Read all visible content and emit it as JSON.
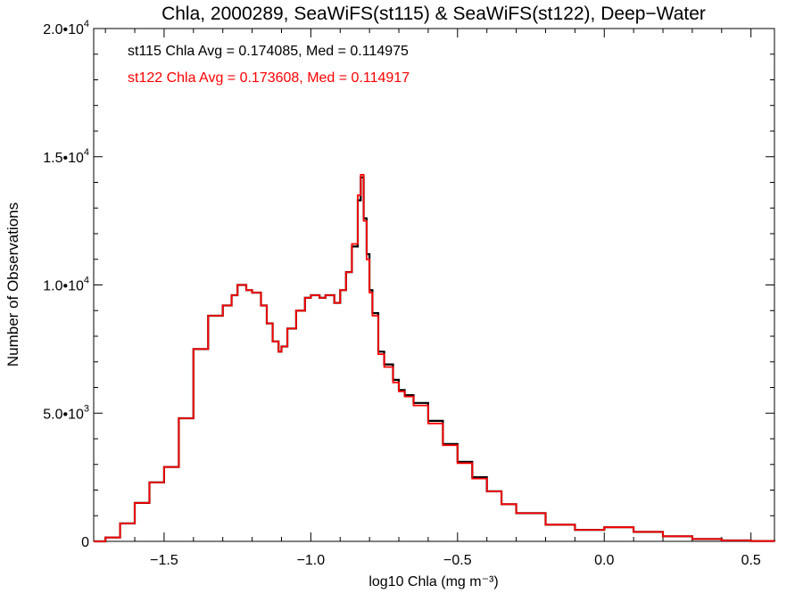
{
  "chart_data": {
    "type": "line",
    "title": "Chla, 2000289, SeaWiFS(st115) & SeaWiFS(st122), Deep−Water",
    "xlabel": "log10 Chla (mg m⁻³)",
    "ylabel": "Number of Observations",
    "xlim": [
      -1.74,
      0.58
    ],
    "ylim": [
      0,
      20000
    ],
    "step": true,
    "grid": false,
    "x_ticks": [
      {
        "value": -1.5,
        "label": "−1.5"
      },
      {
        "value": -1.0,
        "label": "−1.0"
      },
      {
        "value": -0.5,
        "label": "−0.5"
      },
      {
        "value": 0.0,
        "label": "0.0"
      },
      {
        "value": 0.5,
        "label": "0.5"
      }
    ],
    "y_ticks": [
      {
        "value": 0,
        "label": "0"
      },
      {
        "value": 5000,
        "label": "5.0•103"
      },
      {
        "value": 10000,
        "label": "1.0•104"
      },
      {
        "value": 15000,
        "label": "1.5•104"
      },
      {
        "value": 20000,
        "label": "2.0•104"
      }
    ],
    "annotations": [
      {
        "text": "st115 Chla Avg = 0.174085, Med = 0.114975",
        "color": "#000000"
      },
      {
        "text": "st122 Chla Avg = 0.173608, Med = 0.114917",
        "color": "#ff0000"
      }
    ],
    "series": [
      {
        "name": "st115",
        "color": "#000000",
        "x": [
          -1.74,
          -1.7,
          -1.65,
          -1.6,
          -1.55,
          -1.5,
          -1.45,
          -1.4,
          -1.35,
          -1.3,
          -1.27,
          -1.25,
          -1.22,
          -1.2,
          -1.17,
          -1.15,
          -1.13,
          -1.11,
          -1.1,
          -1.08,
          -1.05,
          -1.02,
          -1.0,
          -0.97,
          -0.95,
          -0.92,
          -0.9,
          -0.88,
          -0.86,
          -0.84,
          -0.83,
          -0.82,
          -0.81,
          -0.8,
          -0.79,
          -0.77,
          -0.75,
          -0.72,
          -0.7,
          -0.68,
          -0.65,
          -0.6,
          -0.55,
          -0.5,
          -0.45,
          -0.4,
          -0.35,
          -0.3,
          -0.2,
          -0.1,
          0.0,
          0.1,
          0.2,
          0.3,
          0.4,
          0.5,
          0.58
        ],
        "y": [
          0,
          150,
          700,
          1500,
          2300,
          2900,
          4800,
          7500,
          8800,
          9200,
          9600,
          10000,
          9800,
          9700,
          9200,
          8500,
          7800,
          7400,
          7600,
          8300,
          9000,
          9500,
          9600,
          9500,
          9600,
          9300,
          9800,
          10500,
          11500,
          13300,
          14200,
          12600,
          11200,
          9800,
          8900,
          7400,
          6900,
          6300,
          5900,
          5700,
          5400,
          4700,
          3800,
          3100,
          2500,
          1950,
          1450,
          1100,
          650,
          450,
          550,
          370,
          200,
          90,
          35,
          10,
          0
        ]
      },
      {
        "name": "st122",
        "color": "#ff0000",
        "x": [
          -1.74,
          -1.7,
          -1.65,
          -1.6,
          -1.55,
          -1.5,
          -1.45,
          -1.4,
          -1.35,
          -1.3,
          -1.27,
          -1.25,
          -1.22,
          -1.2,
          -1.17,
          -1.15,
          -1.13,
          -1.11,
          -1.1,
          -1.08,
          -1.05,
          -1.02,
          -1.0,
          -0.97,
          -0.95,
          -0.92,
          -0.9,
          -0.88,
          -0.86,
          -0.84,
          -0.83,
          -0.82,
          -0.81,
          -0.8,
          -0.79,
          -0.77,
          -0.75,
          -0.72,
          -0.7,
          -0.68,
          -0.65,
          -0.6,
          -0.55,
          -0.5,
          -0.45,
          -0.4,
          -0.35,
          -0.3,
          -0.2,
          -0.1,
          0.0,
          0.1,
          0.2,
          0.3,
          0.4,
          0.5,
          0.58
        ],
        "y": [
          0,
          150,
          700,
          1500,
          2300,
          2900,
          4800,
          7500,
          8800,
          9200,
          9600,
          10000,
          9800,
          9700,
          9200,
          8500,
          7800,
          7400,
          7600,
          8300,
          9000,
          9500,
          9600,
          9500,
          9600,
          9300,
          9800,
          10500,
          11600,
          13500,
          14300,
          12500,
          11000,
          9700,
          8800,
          7300,
          6800,
          6200,
          5850,
          5650,
          5300,
          4600,
          3750,
          3050,
          2450,
          1950,
          1450,
          1100,
          650,
          450,
          550,
          370,
          200,
          90,
          35,
          10,
          0
        ]
      }
    ]
  }
}
